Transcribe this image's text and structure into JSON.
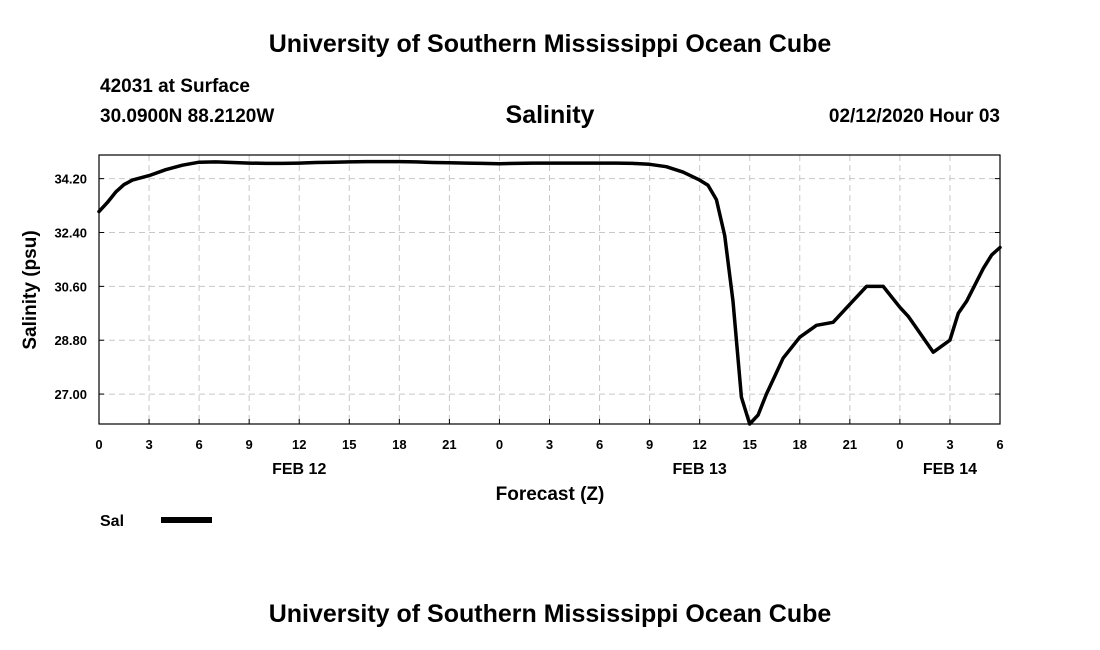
{
  "header": {
    "title": "University of Southern Mississippi Ocean Cube",
    "station": "42031 at Surface",
    "coords": "30.0900N 88.2120W",
    "datetime": "02/12/2020 Hour 03"
  },
  "footer": {
    "title": "University of Southern Mississippi Ocean Cube"
  },
  "colors": {
    "line": "#000000",
    "grid": "#c8c8c8"
  },
  "chart_data": {
    "type": "line",
    "title": "Salinity",
    "xlabel": "Forecast (Z)",
    "ylabel": "Salinity (psu)",
    "xlim": [
      0,
      54
    ],
    "ylim": [
      26.0,
      34.99
    ],
    "grid": true,
    "legend_position": "bottom-left",
    "x_ticks": [
      0,
      3,
      6,
      9,
      12,
      15,
      18,
      21,
      24,
      27,
      30,
      33,
      36,
      39,
      42,
      45,
      48,
      51,
      54
    ],
    "x_tick_labels": [
      "0",
      "3",
      "6",
      "9",
      "12",
      "15",
      "18",
      "21",
      "0",
      "3",
      "6",
      "9",
      "12",
      "15",
      "18",
      "21",
      "0",
      "3",
      "6"
    ],
    "y_ticks": [
      27.0,
      28.8,
      30.6,
      32.4,
      34.2
    ],
    "y_tick_labels": [
      "27.00",
      "28.80",
      "30.60",
      "32.40",
      "34.20"
    ],
    "date_labels": [
      {
        "x": 12,
        "label": "FEB 12"
      },
      {
        "x": 36,
        "label": "FEB 13"
      },
      {
        "x": 51,
        "label": "FEB 14"
      }
    ],
    "series": [
      {
        "name": "Sal",
        "x": [
          0,
          0.5,
          1,
          1.5,
          2,
          3,
          4,
          5,
          6,
          7,
          8,
          9,
          10,
          11,
          12,
          13,
          14,
          15,
          16,
          17,
          18,
          19,
          20,
          21,
          22,
          23,
          24,
          25,
          26,
          27,
          28,
          29,
          30,
          31,
          32,
          33,
          34,
          35,
          36,
          36.5,
          37,
          37.5,
          38,
          38.5,
          39,
          39.5,
          40,
          40.5,
          41,
          42,
          43,
          44,
          45,
          46,
          47,
          48,
          48.5,
          49,
          50,
          51,
          51.5,
          52,
          53,
          53.5,
          54
        ],
        "values": [
          33.1,
          33.4,
          33.75,
          34.0,
          34.15,
          34.3,
          34.5,
          34.65,
          34.75,
          34.76,
          34.74,
          34.72,
          34.71,
          34.71,
          34.72,
          34.74,
          34.75,
          34.76,
          34.77,
          34.77,
          34.77,
          34.76,
          34.74,
          34.73,
          34.72,
          34.71,
          34.7,
          34.71,
          34.72,
          34.72,
          34.72,
          34.72,
          34.72,
          34.72,
          34.71,
          34.68,
          34.6,
          34.42,
          34.15,
          33.98,
          33.5,
          32.3,
          30.1,
          26.9,
          26.0,
          26.3,
          27.0,
          27.6,
          28.2,
          28.9,
          29.3,
          29.4,
          30.0,
          30.6,
          30.6,
          29.9,
          29.6,
          29.2,
          28.4,
          28.8,
          29.7,
          30.1,
          31.2,
          31.65,
          31.9
        ]
      }
    ]
  }
}
